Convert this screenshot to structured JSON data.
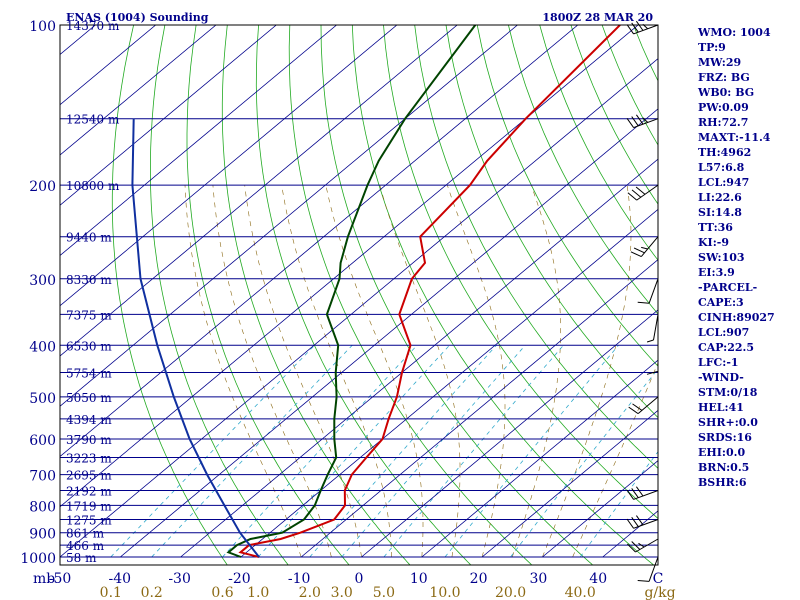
{
  "chart_data": {
    "type": "line",
    "title": "ENAS (1004) Sounding",
    "time_label": "1800Z 28 MAR 20",
    "x_axis_prefix": "mb",
    "xlim": [
      -50,
      50
    ],
    "ylim": [
      1000,
      100
    ],
    "temperature_ticks": [
      "-50",
      "-40",
      "-30",
      "-20",
      "-10",
      "0",
      "10",
      "20",
      "30",
      "40",
      "C"
    ],
    "mixing_ratio_labels": [
      "0.1",
      "0.2",
      "0.6",
      "1.0",
      "2.0",
      "3.0",
      "5.0",
      "10.0",
      "20.0",
      "40.0",
      "g/kg"
    ],
    "pressure_labels": [
      {
        "p": 100,
        "label": "100"
      },
      {
        "p": 200,
        "label": "200"
      },
      {
        "p": 300,
        "label": "300"
      },
      {
        "p": 400,
        "label": "400"
      },
      {
        "p": 500,
        "label": "500"
      },
      {
        "p": 600,
        "label": "600"
      },
      {
        "p": 700,
        "label": "700"
      },
      {
        "p": 800,
        "label": "800"
      },
      {
        "p": 900,
        "label": "900"
      },
      {
        "p": 1000,
        "label": "1000"
      }
    ],
    "height_levels": [
      {
        "p": 100,
        "label": "14370 m"
      },
      {
        "p": 150,
        "label": "12540 m"
      },
      {
        "p": 200,
        "label": "10800 m"
      },
      {
        "p": 250,
        "label": "9440 m"
      },
      {
        "p": 300,
        "label": "8330 m"
      },
      {
        "p": 350,
        "label": "7375 m"
      },
      {
        "p": 400,
        "label": "6530 m"
      },
      {
        "p": 450,
        "label": "5754 m"
      },
      {
        "p": 500,
        "label": "5050 m"
      },
      {
        "p": 550,
        "label": "4394 m"
      },
      {
        "p": 600,
        "label": "3790 m"
      },
      {
        "p": 650,
        "label": "3223 m"
      },
      {
        "p": 700,
        "label": "2695 m"
      },
      {
        "p": 750,
        "label": "2192 m"
      },
      {
        "p": 800,
        "label": "1719 m"
      },
      {
        "p": 850,
        "label": "1275 m"
      },
      {
        "p": 900,
        "label": "861 m"
      },
      {
        "p": 950,
        "label": "466 m"
      },
      {
        "p": 1000,
        "label": "58 m"
      }
    ],
    "series": [
      {
        "color": "#cc0000",
        "points": [
          [
            1000,
            -17
          ],
          [
            980,
            -21
          ],
          [
            950,
            -21
          ],
          [
            925,
            -17
          ],
          [
            900,
            -15
          ],
          [
            850,
            -12
          ],
          [
            800,
            -13
          ],
          [
            750,
            -16
          ],
          [
            700,
            -18
          ],
          [
            650,
            -19
          ],
          [
            600,
            -20
          ],
          [
            550,
            -23
          ],
          [
            500,
            -26
          ],
          [
            450,
            -30
          ],
          [
            400,
            -34
          ],
          [
            350,
            -42
          ],
          [
            300,
            -47
          ],
          [
            280,
            -48
          ],
          [
            250,
            -54
          ],
          [
            200,
            -56
          ],
          [
            180,
            -58
          ],
          [
            150,
            -60
          ],
          [
            100,
            -63
          ]
        ]
      },
      {
        "color": "#004400",
        "points": [
          [
            1000,
            -20
          ],
          [
            980,
            -23
          ],
          [
            950,
            -23
          ],
          [
            925,
            -22
          ],
          [
            900,
            -18
          ],
          [
            850,
            -17
          ],
          [
            800,
            -18
          ],
          [
            750,
            -20
          ],
          [
            700,
            -22
          ],
          [
            650,
            -24
          ],
          [
            600,
            -28
          ],
          [
            550,
            -32
          ],
          [
            500,
            -36
          ],
          [
            450,
            -41
          ],
          [
            400,
            -46
          ],
          [
            350,
            -54
          ],
          [
            300,
            -59
          ],
          [
            280,
            -62
          ],
          [
            250,
            -66
          ],
          [
            200,
            -73
          ],
          [
            180,
            -76
          ],
          [
            150,
            -80
          ],
          [
            100,
            -87
          ]
        ]
      },
      {
        "color": "#1030a0",
        "points": [
          [
            1000,
            -17
          ],
          [
            900,
            -25
          ],
          [
            800,
            -33
          ],
          [
            700,
            -42
          ],
          [
            600,
            -52
          ],
          [
            500,
            -63
          ],
          [
            400,
            -76
          ],
          [
            300,
            -92
          ],
          [
            200,
            -112
          ],
          [
            150,
            -125
          ]
        ]
      }
    ],
    "wind_barbs": [
      {
        "p": 1000,
        "dir": 200,
        "spd": 10
      },
      {
        "p": 925,
        "dir": 240,
        "spd": 25
      },
      {
        "p": 850,
        "dir": 250,
        "spd": 30
      },
      {
        "p": 750,
        "dir": 250,
        "spd": 30
      },
      {
        "p": 500,
        "dir": 230,
        "spd": 20
      },
      {
        "p": 400,
        "dir": 180,
        "spd": 10
      },
      {
        "p": 350,
        "dir": 190,
        "spd": 5
      },
      {
        "p": 300,
        "dir": 200,
        "spd": 10
      },
      {
        "p": 250,
        "dir": 220,
        "spd": 25
      },
      {
        "p": 200,
        "dir": 235,
        "spd": 30
      },
      {
        "p": 150,
        "dir": 250,
        "spd": 35
      },
      {
        "p": 100,
        "dir": 250,
        "spd": 35
      }
    ]
  },
  "indices": [
    "WMO: 1004",
    "TP:9",
    "MW:29",
    "FRZ: BG",
    "WB0: BG",
    "PW:0.09",
    "RH:72.7",
    "MAXT:-11.4",
    "TH:4962",
    "L57:6.8",
    "LCL:947",
    "LI:22.6",
    "SI:14.8",
    "TT:36",
    "KI:-9",
    "SW:103",
    "EI:3.9",
    "-PARCEL-",
    "CAPE:3",
    "CINH:89027",
    "LCL:907",
    "CAP:22.5",
    "LFC:-1",
    "-WIND-",
    "STM:0/18",
    "HEL:41",
    "SHR+:0.0",
    "SRDS:16",
    "EHI:0.0",
    "BRN:0.5",
    "BSHR:6"
  ],
  "colors": {
    "isobar": "#00008b",
    "isotherm": "#00008b",
    "dry_adiabat": "#22aa22",
    "mixing_ratio": "#33aacc",
    "moist_adiabat": "#8b6914"
  }
}
